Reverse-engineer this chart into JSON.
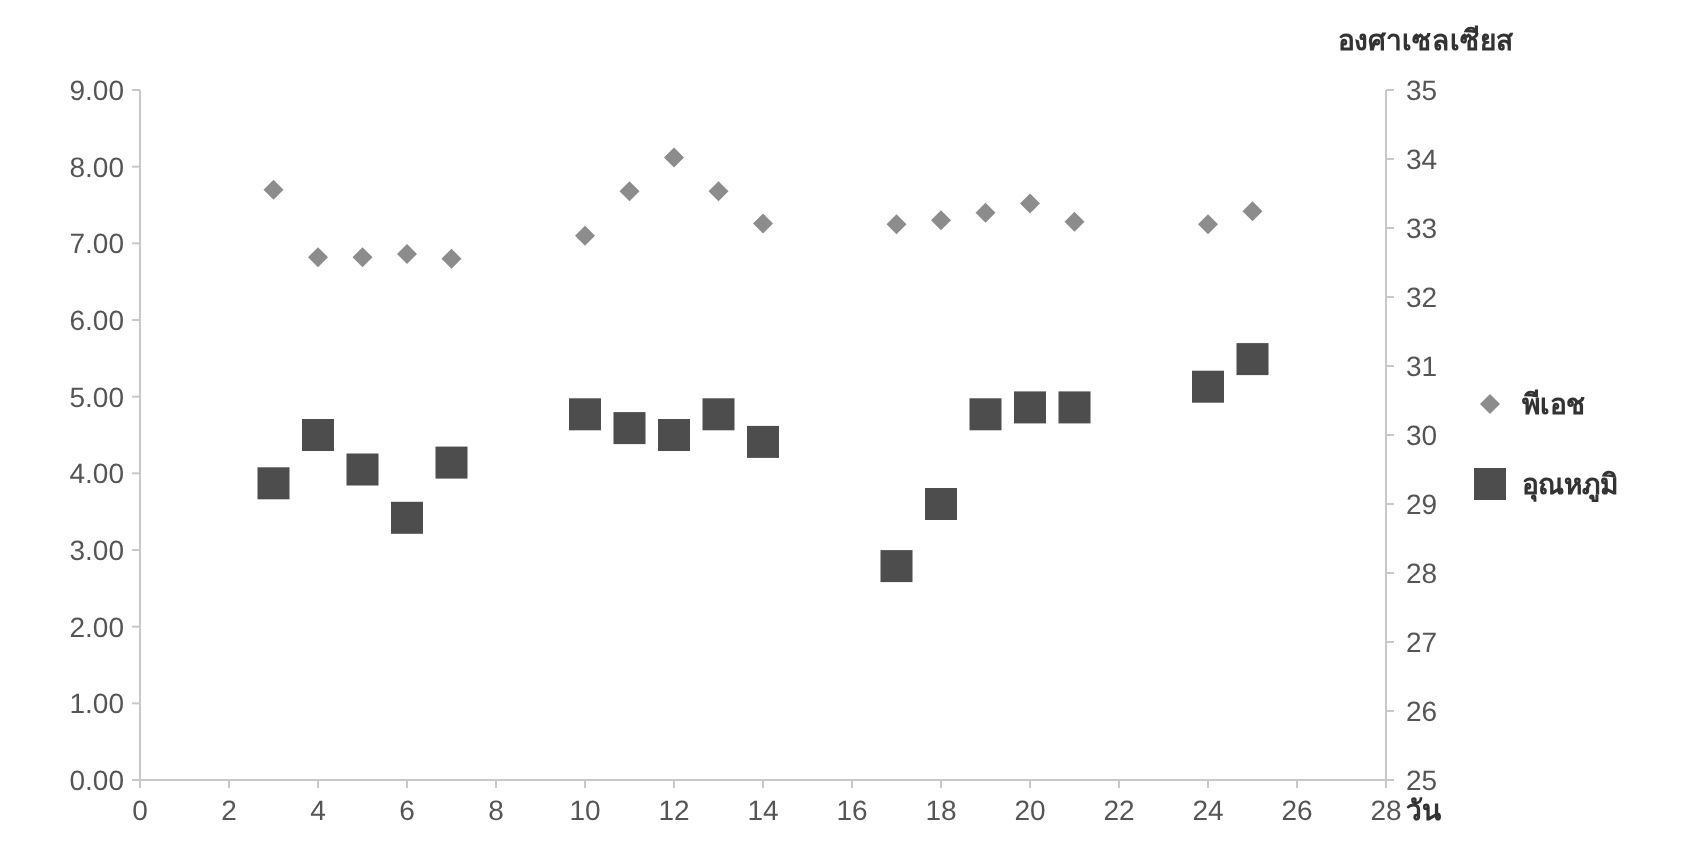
{
  "chart_data": {
    "type": "scatter",
    "xlabel": "วัน",
    "y2label": "องศาเซลเซียส",
    "x": [
      3,
      4,
      5,
      6,
      7,
      10,
      11,
      12,
      13,
      14,
      17,
      18,
      19,
      20,
      21,
      24,
      25
    ],
    "series": [
      {
        "name": "พีเอช",
        "color": "#8c8c8c",
        "marker": "diamond",
        "values": [
          7.7,
          6.82,
          6.82,
          6.86,
          6.8,
          7.1,
          7.68,
          8.12,
          7.68,
          7.26,
          7.25,
          7.3,
          7.4,
          7.52,
          7.28,
          7.25,
          7.42
        ]
      },
      {
        "name": "อุณหภูมิ",
        "color": "#4d4d4d",
        "marker": "square",
        "axis": "y2",
        "values": [
          29.3,
          30.0,
          29.5,
          28.8,
          29.6,
          30.3,
          30.1,
          30.0,
          30.3,
          29.9,
          28.1,
          29.0,
          30.3,
          30.4,
          30.4,
          30.7,
          31.1
        ]
      }
    ],
    "xlim": [
      0,
      28
    ],
    "xticks": [
      0,
      2,
      4,
      6,
      8,
      10,
      12,
      14,
      16,
      18,
      20,
      22,
      24,
      26,
      28
    ],
    "ylim": [
      0,
      9
    ],
    "yticks": [
      {
        "value": 0,
        "label": "0.00"
      },
      {
        "value": 1,
        "label": "1.00"
      },
      {
        "value": 2,
        "label": "2.00"
      },
      {
        "value": 3,
        "label": "3.00"
      },
      {
        "value": 4,
        "label": "4.00"
      },
      {
        "value": 5,
        "label": "5.00"
      },
      {
        "value": 6,
        "label": "6.00"
      },
      {
        "value": 7,
        "label": "7.00"
      },
      {
        "value": 8,
        "label": "8.00"
      },
      {
        "value": 9,
        "label": "9.00"
      }
    ],
    "y2lim": [
      25,
      35
    ],
    "y2ticks": [
      25,
      26,
      27,
      28,
      29,
      30,
      31,
      32,
      33,
      34,
      35
    ],
    "grid": false,
    "legend": "right"
  }
}
